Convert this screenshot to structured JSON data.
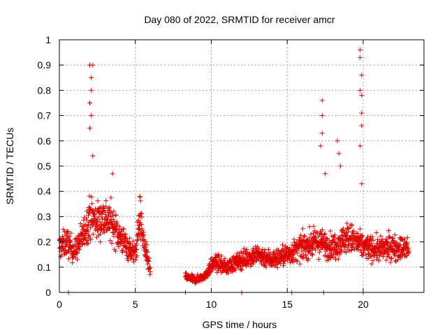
{
  "chart_data": {
    "type": "scatter",
    "title": "Day 080 of 2022, SRMTID for receiver amcr",
    "xlabel": "GPS time / hours",
    "ylabel": "SRMTID / TECUs",
    "xlim": [
      0,
      24
    ],
    "ylim": [
      0,
      1
    ],
    "x_ticks": [
      0,
      5,
      10,
      15,
      20
    ],
    "x_tick_labels": [
      "0",
      "5",
      "10",
      "15",
      "20"
    ],
    "y_ticks": [
      0,
      0.1,
      0.2,
      0.3,
      0.4,
      0.5,
      0.6,
      0.7,
      0.8,
      0.9,
      1
    ],
    "y_tick_labels": [
      "0",
      "0.1",
      "0.2",
      "0.3",
      "0.4",
      "0.5",
      "0.6",
      "0.7",
      "0.8",
      "0.9",
      "1"
    ],
    "grid": true,
    "marker": "+",
    "color": "#e00000",
    "series": [
      {
        "name": "SRMTID",
        "segments": [
          {
            "x_start": 0.0,
            "x_end": 6.0,
            "profile": [
              [
                0.0,
                0.18
              ],
              [
                0.5,
                0.2
              ],
              [
                1.0,
                0.16
              ],
              [
                1.5,
                0.22
              ],
              [
                2.0,
                0.3
              ],
              [
                2.5,
                0.28
              ],
              [
                3.0,
                0.3
              ],
              [
                3.5,
                0.27
              ],
              [
                4.0,
                0.22
              ],
              [
                4.5,
                0.18
              ],
              [
                5.0,
                0.15
              ],
              [
                5.3,
                0.3
              ],
              [
                5.6,
                0.18
              ],
              [
                6.0,
                0.08
              ]
            ]
          },
          {
            "x_start": 8.3,
            "x_end": 9.7,
            "profile": [
              [
                8.3,
                0.06
              ],
              [
                9.0,
                0.05
              ],
              [
                9.7,
                0.07
              ]
            ]
          },
          {
            "x_start": 9.7,
            "x_end": 23.0,
            "profile": [
              [
                9.7,
                0.08
              ],
              [
                10.2,
                0.12
              ],
              [
                11.0,
                0.1
              ],
              [
                12.0,
                0.13
              ],
              [
                13.0,
                0.15
              ],
              [
                14.0,
                0.13
              ],
              [
                15.0,
                0.15
              ],
              [
                16.0,
                0.18
              ],
              [
                17.0,
                0.2
              ],
              [
                18.0,
                0.18
              ],
              [
                19.0,
                0.22
              ],
              [
                20.0,
                0.18
              ],
              [
                21.0,
                0.17
              ],
              [
                22.0,
                0.18
              ],
              [
                23.0,
                0.17
              ]
            ]
          }
        ],
        "spikes": [
          {
            "x": 2.0,
            "y": 0.9
          },
          {
            "x": 2.1,
            "y": 0.85
          },
          {
            "x": 2.0,
            "y": 0.75
          },
          {
            "x": 2.1,
            "y": 0.7
          },
          {
            "x": 2.0,
            "y": 0.65
          },
          {
            "x": 2.2,
            "y": 0.54
          },
          {
            "x": 2.2,
            "y": 0.9
          },
          {
            "x": 2.1,
            "y": 0.8
          },
          {
            "x": 3.5,
            "y": 0.47
          },
          {
            "x": 5.3,
            "y": 0.38
          },
          {
            "x": 17.3,
            "y": 0.76
          },
          {
            "x": 17.3,
            "y": 0.7
          },
          {
            "x": 17.2,
            "y": 0.58
          },
          {
            "x": 17.3,
            "y": 0.63
          },
          {
            "x": 17.5,
            "y": 0.47
          },
          {
            "x": 18.3,
            "y": 0.6
          },
          {
            "x": 18.4,
            "y": 0.55
          },
          {
            "x": 18.5,
            "y": 0.5
          },
          {
            "x": 19.8,
            "y": 0.96
          },
          {
            "x": 19.8,
            "y": 0.93
          },
          {
            "x": 19.9,
            "y": 0.86
          },
          {
            "x": 19.8,
            "y": 0.8
          },
          {
            "x": 19.9,
            "y": 0.78
          },
          {
            "x": 19.9,
            "y": 0.71
          },
          {
            "x": 19.9,
            "y": 0.66
          },
          {
            "x": 19.8,
            "y": 0.58
          },
          {
            "x": 19.9,
            "y": 0.43
          }
        ],
        "zero_markers": [
          0.6,
          8.3,
          12.0,
          15.3,
          17.4,
          20.0
        ]
      }
    ]
  }
}
